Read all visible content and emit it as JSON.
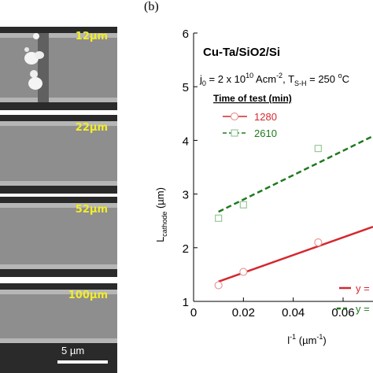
{
  "sem_panels": [
    {
      "label": "12",
      "unit": "µm"
    },
    {
      "label": "22",
      "unit": "µm"
    },
    {
      "label": "52",
      "unit": "µm"
    },
    {
      "label": "100",
      "unit": "µm"
    }
  ],
  "scale_bar": {
    "label": "5 µm"
  },
  "panel_letter": "(b)",
  "chart_data": {
    "type": "scatter",
    "title": "Cu-Ta/SiO2/Si",
    "subtitle": {
      "j_symbol": "j",
      "j_sub": "0",
      "j_text": " = 2 x 10",
      "j_exp": "10",
      "j_unit": " Acm",
      "j_unit_exp": "-2",
      "t_sep": ", T",
      "t_sub": "S-H",
      "t_text": " = 250 ",
      "t_deg": "o",
      "t_unit": "C"
    },
    "legend_title": "Time of test (min)",
    "xlabel": {
      "text": "l",
      "sup": "-1",
      "unit": " (µm",
      "unit_sup": "-1",
      "close": ")"
    },
    "ylabel": {
      "text": "L",
      "sub": "cathode",
      "unit": " (µm)"
    },
    "xlim": [
      0,
      0.072
    ],
    "ylim": [
      1,
      6
    ],
    "xticks": [
      0,
      0.02,
      0.04,
      0.06
    ],
    "xtick_labels": [
      "0",
      "0.02",
      "0.04",
      "0.06"
    ],
    "yticks": [
      1,
      2,
      3,
      4,
      5,
      6
    ],
    "ytick_labels": [
      "1",
      "2",
      "3",
      "4",
      "5",
      "6"
    ],
    "series": [
      {
        "name": "1280",
        "marker": "circle",
        "color": "#d4282f",
        "x": [
          0.01,
          0.02,
          0.05
        ],
        "y": [
          1.3,
          1.55,
          2.1
        ],
        "fit": {
          "x": [
            0.01,
            0.072
          ],
          "y": [
            1.37,
            2.39
          ],
          "style": "solid"
        },
        "fit_label": "y ="
      },
      {
        "name": "2610",
        "marker": "square",
        "color": "#1e7a1e",
        "x": [
          0.01,
          0.02,
          0.05
        ],
        "y": [
          2.55,
          2.8,
          3.85
        ],
        "fit": {
          "x": [
            0.01,
            0.072
          ],
          "y": [
            2.67,
            4.08
          ],
          "style": "dashed"
        },
        "fit_label": "y ="
      }
    ]
  }
}
